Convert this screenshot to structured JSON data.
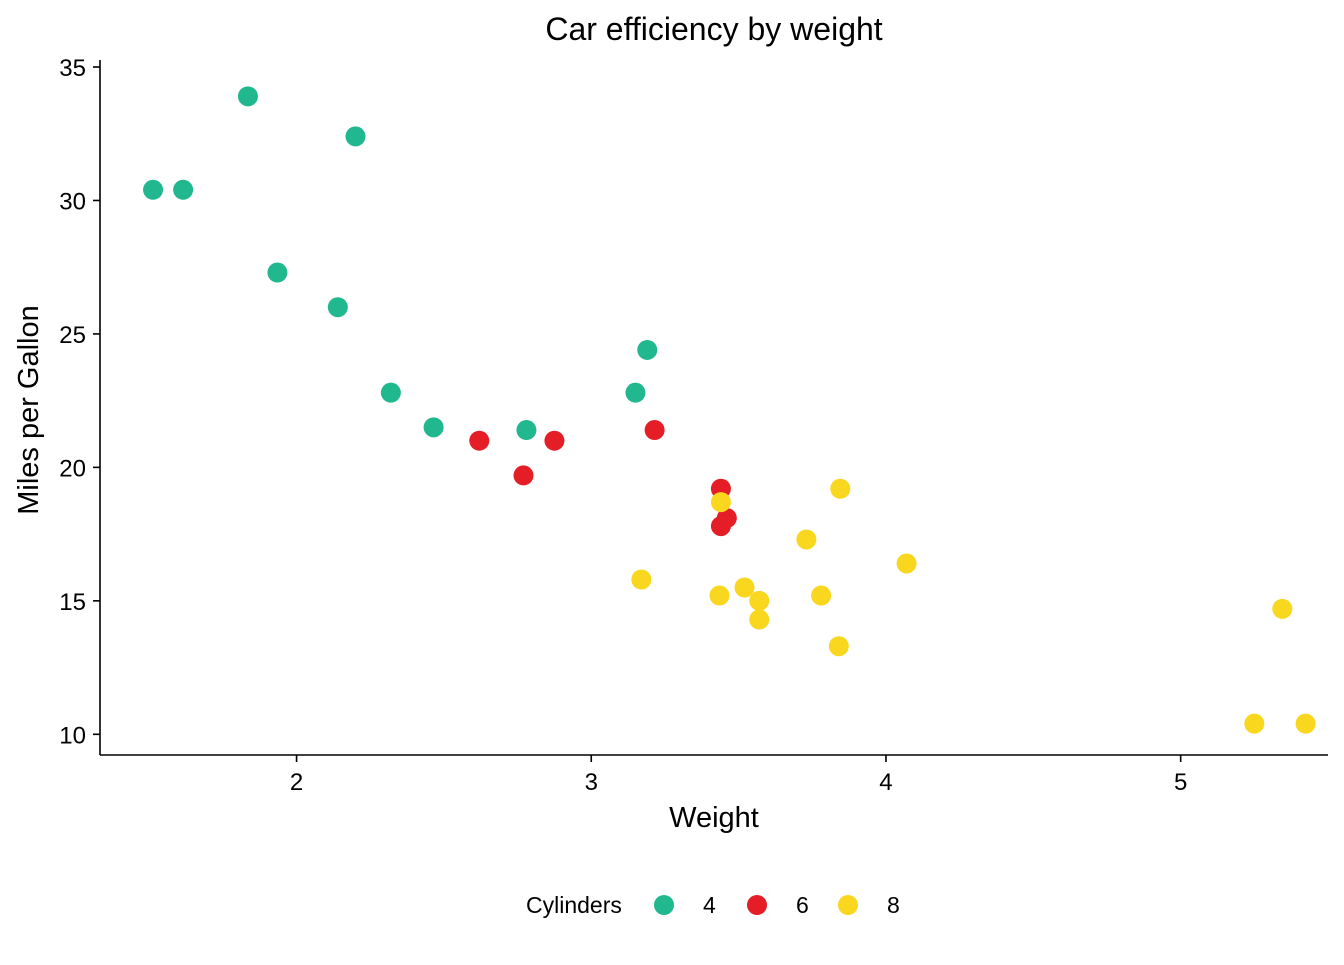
{
  "chart_data": {
    "type": "scatter",
    "title": "Car efficiency by weight",
    "xlabel": "Weight",
    "ylabel": "Miles per Gallon",
    "xlim": [
      1.333,
      5.5
    ],
    "ylim": [
      9.225,
      35.0
    ],
    "xticks": [
      2,
      3,
      4,
      5
    ],
    "yticks": [
      10,
      15,
      20,
      25,
      30,
      35
    ],
    "grid": false,
    "legend": {
      "title": "Cylinders",
      "position": "bottom"
    },
    "series": [
      {
        "name": "4",
        "color": "#21b88f",
        "points": [
          {
            "x": 2.32,
            "y": 22.8
          },
          {
            "x": 3.19,
            "y": 24.4
          },
          {
            "x": 3.15,
            "y": 22.8
          },
          {
            "x": 2.2,
            "y": 32.4
          },
          {
            "x": 1.615,
            "y": 30.4
          },
          {
            "x": 1.835,
            "y": 33.9
          },
          {
            "x": 2.465,
            "y": 21.5
          },
          {
            "x": 1.935,
            "y": 27.3
          },
          {
            "x": 2.14,
            "y": 26.0
          },
          {
            "x": 1.513,
            "y": 30.4
          },
          {
            "x": 2.78,
            "y": 21.4
          }
        ]
      },
      {
        "name": "6",
        "color": "#e41d27",
        "points": [
          {
            "x": 2.62,
            "y": 21.0
          },
          {
            "x": 2.875,
            "y": 21.0
          },
          {
            "x": 3.215,
            "y": 21.4
          },
          {
            "x": 3.46,
            "y": 18.1
          },
          {
            "x": 3.44,
            "y": 19.2
          },
          {
            "x": 3.44,
            "y": 17.8
          },
          {
            "x": 2.77,
            "y": 19.7
          }
        ]
      },
      {
        "name": "8",
        "color": "#f9d71e",
        "points": [
          {
            "x": 3.44,
            "y": 18.7
          },
          {
            "x": 3.57,
            "y": 14.3
          },
          {
            "x": 4.07,
            "y": 16.4
          },
          {
            "x": 3.73,
            "y": 17.3
          },
          {
            "x": 3.78,
            "y": 15.2
          },
          {
            "x": 5.25,
            "y": 10.4
          },
          {
            "x": 5.424,
            "y": 10.4
          },
          {
            "x": 5.345,
            "y": 14.7
          },
          {
            "x": 3.52,
            "y": 15.5
          },
          {
            "x": 3.435,
            "y": 15.2
          },
          {
            "x": 3.84,
            "y": 13.3
          },
          {
            "x": 3.845,
            "y": 19.2
          },
          {
            "x": 3.17,
            "y": 15.8
          },
          {
            "x": 3.57,
            "y": 15.0
          }
        ]
      }
    ]
  }
}
